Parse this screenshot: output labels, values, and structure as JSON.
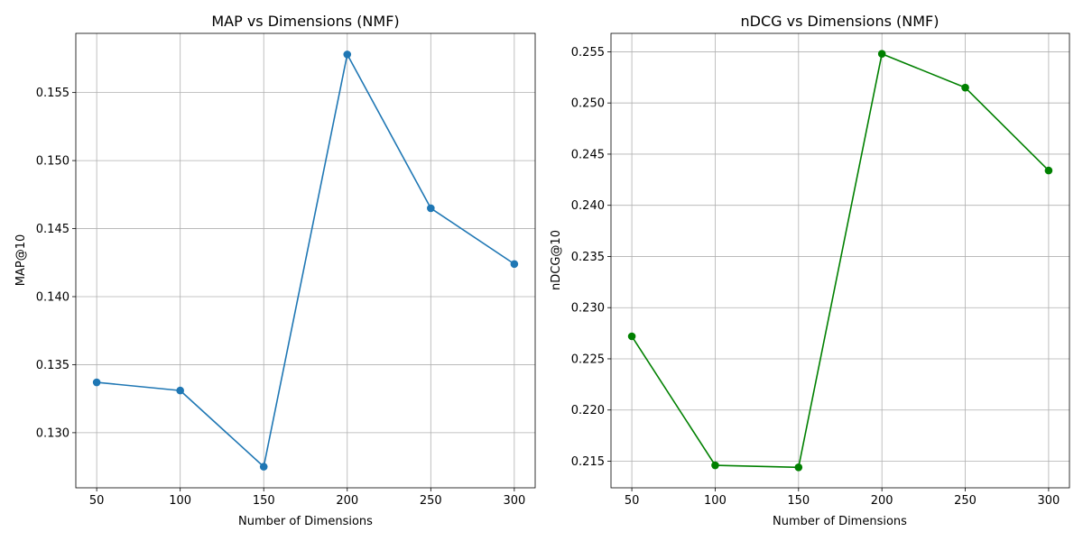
{
  "chart_data": [
    {
      "type": "line",
      "title": "MAP vs Dimensions (NMF)",
      "xlabel": "Number of Dimensions",
      "ylabel": "MAP@10",
      "x": [
        50,
        100,
        150,
        200,
        250,
        300
      ],
      "series": [
        {
          "values": [
            0.1337,
            0.1331,
            0.1275,
            0.1578,
            0.1465,
            0.1424
          ],
          "color": "#1f77b4",
          "marker": "circle"
        }
      ],
      "xlim": [
        37.5,
        312.5
      ],
      "ylim": [
        0.12595,
        0.15935
      ],
      "xticks": [
        50,
        100,
        150,
        200,
        250,
        300
      ],
      "xtick_labels": [
        "50",
        "100",
        "150",
        "200",
        "250",
        "300"
      ],
      "yticks": [
        0.13,
        0.135,
        0.14,
        0.145,
        0.15,
        0.155
      ],
      "ytick_labels": [
        "0.130",
        "0.135",
        "0.140",
        "0.145",
        "0.150",
        "0.155"
      ],
      "grid": true
    },
    {
      "type": "line",
      "title": "nDCG vs Dimensions (NMF)",
      "xlabel": "Number of Dimensions",
      "ylabel": "nDCG@10",
      "x": [
        50,
        100,
        150,
        200,
        250,
        300
      ],
      "series": [
        {
          "values": [
            0.2272,
            0.2146,
            0.2144,
            0.2548,
            0.2515,
            0.2434
          ],
          "color": "#008000",
          "marker": "circle"
        }
      ],
      "xlim": [
        37.5,
        312.5
      ],
      "ylim": [
        0.2124,
        0.2568
      ],
      "xticks": [
        50,
        100,
        150,
        200,
        250,
        300
      ],
      "xtick_labels": [
        "50",
        "100",
        "150",
        "200",
        "250",
        "300"
      ],
      "yticks": [
        0.215,
        0.22,
        0.225,
        0.23,
        0.235,
        0.24,
        0.245,
        0.25,
        0.255
      ],
      "ytick_labels": [
        "0.215",
        "0.220",
        "0.225",
        "0.230",
        "0.235",
        "0.240",
        "0.245",
        "0.250",
        "0.255"
      ],
      "grid": true
    }
  ]
}
